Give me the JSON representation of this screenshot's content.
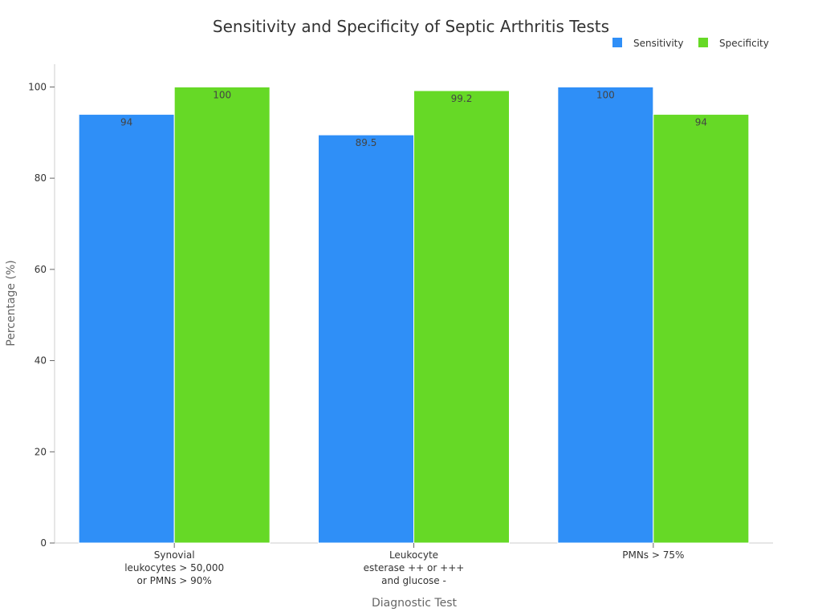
{
  "chart_data": {
    "type": "bar",
    "title": "Sensitivity and Specificity of Septic Arthritis Tests",
    "xlabel": "Diagnostic Test",
    "ylabel": "Percentage (%)",
    "ylim": [
      0,
      105
    ],
    "yticks": [
      0,
      20,
      40,
      60,
      80,
      100
    ],
    "categories": [
      [
        "Synovial",
        "leukocytes > 50,000",
        "or PMNs > 90%"
      ],
      [
        "Leukocyte",
        "esterase ++ or +++",
        "and glucose -"
      ],
      [
        "PMNs > 75%"
      ]
    ],
    "series": [
      {
        "name": "Sensitivity",
        "color": "#2f8ff7",
        "values": [
          94,
          89.5,
          100
        ],
        "labels": [
          "94",
          "89.5",
          "100"
        ]
      },
      {
        "name": "Specificity",
        "color": "#66d926",
        "values": [
          100,
          99.2,
          94
        ],
        "labels": [
          "100",
          "99.2",
          "94"
        ]
      }
    ],
    "legend_position": "top-right",
    "grid": false
  }
}
